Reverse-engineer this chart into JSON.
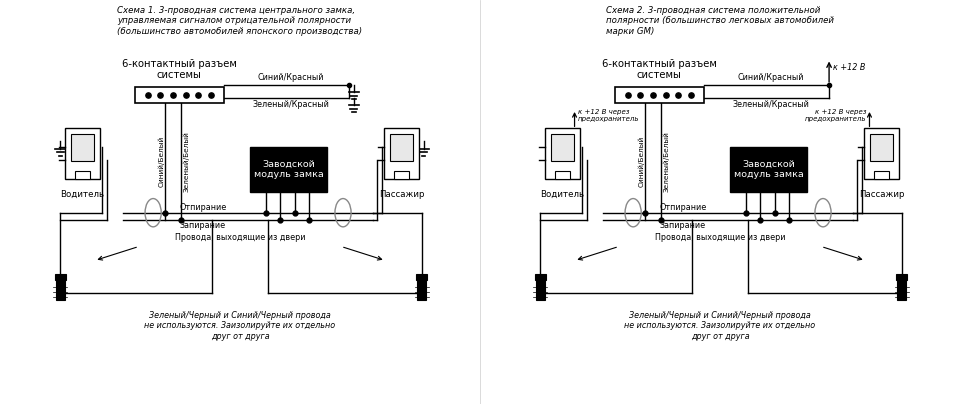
{
  "bg_color": "#ffffff",
  "title1": "Схема 1. 3-проводная система центрального замка,\nуправляемая сигналом отрицательной полярности\n(большинство автомобилей японского производства)",
  "title2": "Схема 2. 3-проводная система положительной\nполярности (большинство легковых автомобилей\nмарки GM)",
  "connector_label": "6-контактный разъем\nсистемы",
  "module_label": "Заводской\nмодуль замка",
  "driver_label": "Водитель",
  "passenger_label": "Пассажир",
  "blue_red": "Синий/Красный",
  "green_red": "Зеленый/Красный",
  "blue_white": "Синий/Белый",
  "green_white": "Зеленый/Белый",
  "unlock": "Отпирание",
  "lock": "Запирание",
  "wires_from_door": "Провода, выходящие из двери",
  "footer": "Зеленый/Черный и Синий/Черный провода\nне используются. Заизолируйте их отдельно\nдруг от друга",
  "plus12v": "к +12 В",
  "plus12v_fuse": "к +12 В через\nпредохранитель"
}
